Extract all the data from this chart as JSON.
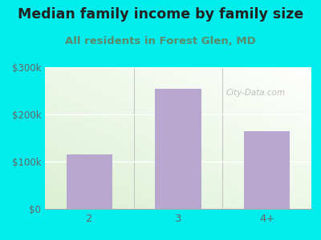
{
  "title": "Median family income by family size",
  "subtitle": "All residents in Forest Glen, MD",
  "categories": [
    "2",
    "3",
    "4+"
  ],
  "values": [
    115000,
    255000,
    165000
  ],
  "bar_color": "#b8a8cf",
  "outer_bg_color": "#00eded",
  "title_color": "#222222",
  "subtitle_color": "#5a8a6a",
  "tick_label_color": "#666666",
  "ylim": [
    0,
    300000
  ],
  "yticks": [
    0,
    100000,
    200000,
    300000
  ],
  "ytick_labels": [
    "$0",
    "$100k",
    "$200k",
    "$300k"
  ],
  "watermark": "City-Data.com",
  "title_fontsize": 12.5,
  "subtitle_fontsize": 9.5,
  "tick_fontsize": 8.5
}
